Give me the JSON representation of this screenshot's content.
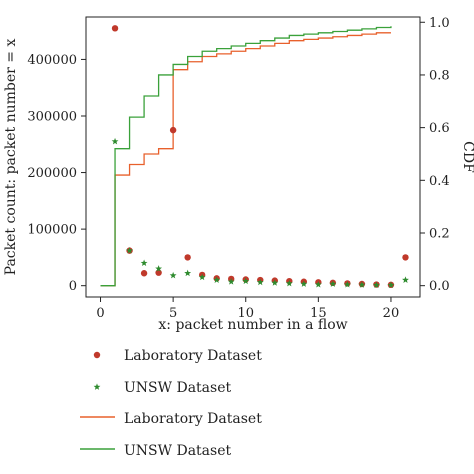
{
  "chart_data": {
    "type": "scatter",
    "xlabel": "x: packet number in a flow",
    "ylabel_left": "Packet count: packet number = x",
    "ylabel_right": "CDF",
    "x_ticks": [
      0,
      5,
      10,
      15,
      20
    ],
    "y_left_ticks": [
      0,
      100000,
      200000,
      300000,
      400000
    ],
    "y_left_tick_labels": [
      "0",
      "100000",
      "200000",
      "300000",
      "400000"
    ],
    "y_right_ticks": [
      0.0,
      0.2,
      0.4,
      0.6,
      0.8,
      1.0
    ],
    "y_right_tick_labels": [
      "0.0",
      "0.2",
      "0.4",
      "0.6",
      "0.8",
      "1.0"
    ],
    "xlim": [
      -1,
      22
    ],
    "ylim_left": [
      -20000,
      475000
    ],
    "ylim_right": [
      -0.043,
      1.02
    ],
    "grid": false,
    "legend_position": "below",
    "series": [
      {
        "name": "Laboratory Dataset",
        "kind": "scatter",
        "marker": "circle",
        "axis": "left",
        "color": "#c0392b",
        "x": [
          1,
          2,
          3,
          4,
          5,
          6,
          7,
          8,
          9,
          10,
          11,
          12,
          13,
          14,
          15,
          16,
          17,
          18,
          19,
          20,
          21
        ],
        "y": [
          455000,
          62000,
          22000,
          23000,
          275000,
          50000,
          19000,
          13000,
          12000,
          11000,
          10000,
          9000,
          8000,
          7000,
          6000,
          5000,
          4000,
          3000,
          2000,
          1500,
          50000
        ]
      },
      {
        "name": "UNSW Dataset",
        "kind": "scatter",
        "marker": "star",
        "axis": "left",
        "color": "#2e8b2e",
        "x": [
          1,
          2,
          3,
          4,
          5,
          6,
          7,
          8,
          9,
          10,
          11,
          12,
          13,
          14,
          15,
          16,
          17,
          18,
          19,
          20,
          21
        ],
        "y": [
          255000,
          62000,
          40000,
          30000,
          18000,
          22000,
          15000,
          10000,
          7000,
          8000,
          6000,
          5000,
          4000,
          3000,
          2000,
          3000,
          2000,
          1500,
          1000,
          1000,
          10000
        ]
      },
      {
        "name": "Laboratory Dataset",
        "kind": "step",
        "axis": "right",
        "color": "#e8602c",
        "x": [
          0,
          1,
          2,
          3,
          4,
          5,
          6,
          7,
          8,
          9,
          10,
          11,
          12,
          13,
          14,
          15,
          16,
          17,
          18,
          19,
          20
        ],
        "y": [
          0.0,
          0.42,
          0.46,
          0.5,
          0.52,
          0.82,
          0.85,
          0.87,
          0.88,
          0.89,
          0.9,
          0.91,
          0.92,
          0.93,
          0.935,
          0.94,
          0.945,
          0.95,
          0.955,
          0.96,
          0.96
        ]
      },
      {
        "name": "UNSW Dataset",
        "kind": "step",
        "axis": "right",
        "color": "#3aa13a",
        "x": [
          0,
          1,
          2,
          3,
          4,
          5,
          6,
          7,
          8,
          9,
          10,
          11,
          12,
          13,
          14,
          15,
          16,
          17,
          18,
          19,
          20
        ],
        "y": [
          0.0,
          0.52,
          0.64,
          0.72,
          0.8,
          0.84,
          0.87,
          0.89,
          0.9,
          0.91,
          0.92,
          0.93,
          0.94,
          0.95,
          0.955,
          0.96,
          0.965,
          0.97,
          0.975,
          0.98,
          0.985
        ]
      }
    ]
  }
}
